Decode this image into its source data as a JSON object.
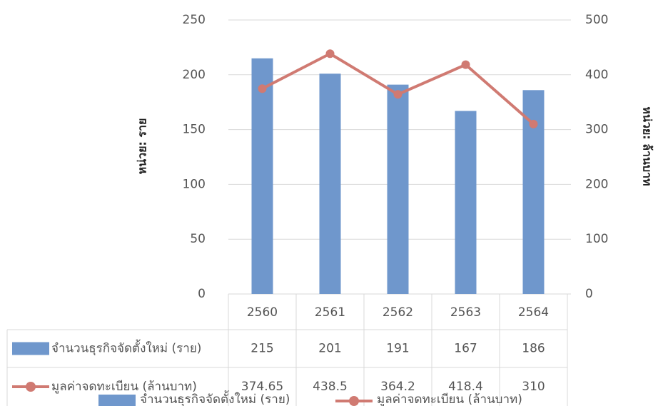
{
  "chart_data": {
    "type": "bar-line",
    "categories": [
      "2560",
      "2561",
      "2562",
      "2563",
      "2564"
    ],
    "series": [
      {
        "name": "จำนวนธุรกิจจัดตั้งใหม่ (ราย)",
        "type": "bar",
        "color": "#6f97cc",
        "values": [
          215,
          201,
          191,
          167,
          186
        ]
      },
      {
        "name": "มูลค่าจดทะเบียน (ล้านบาท)",
        "type": "line",
        "axis": "y2",
        "color": "#d07a72",
        "values": [
          374.65,
          438.5,
          364.2,
          418.4,
          310
        ]
      }
    ],
    "ylabel": "หน่วย: ราย",
    "y2label": "หน่วย: ล้านบาท",
    "ylim": [
      0,
      250
    ],
    "yticks": [
      0,
      50,
      100,
      150,
      200,
      250
    ],
    "y2lim": [
      0,
      500
    ],
    "y2ticks": [
      0,
      100,
      200,
      300,
      400,
      500
    ],
    "grid": true,
    "legend": "bottom",
    "data_table": true
  }
}
